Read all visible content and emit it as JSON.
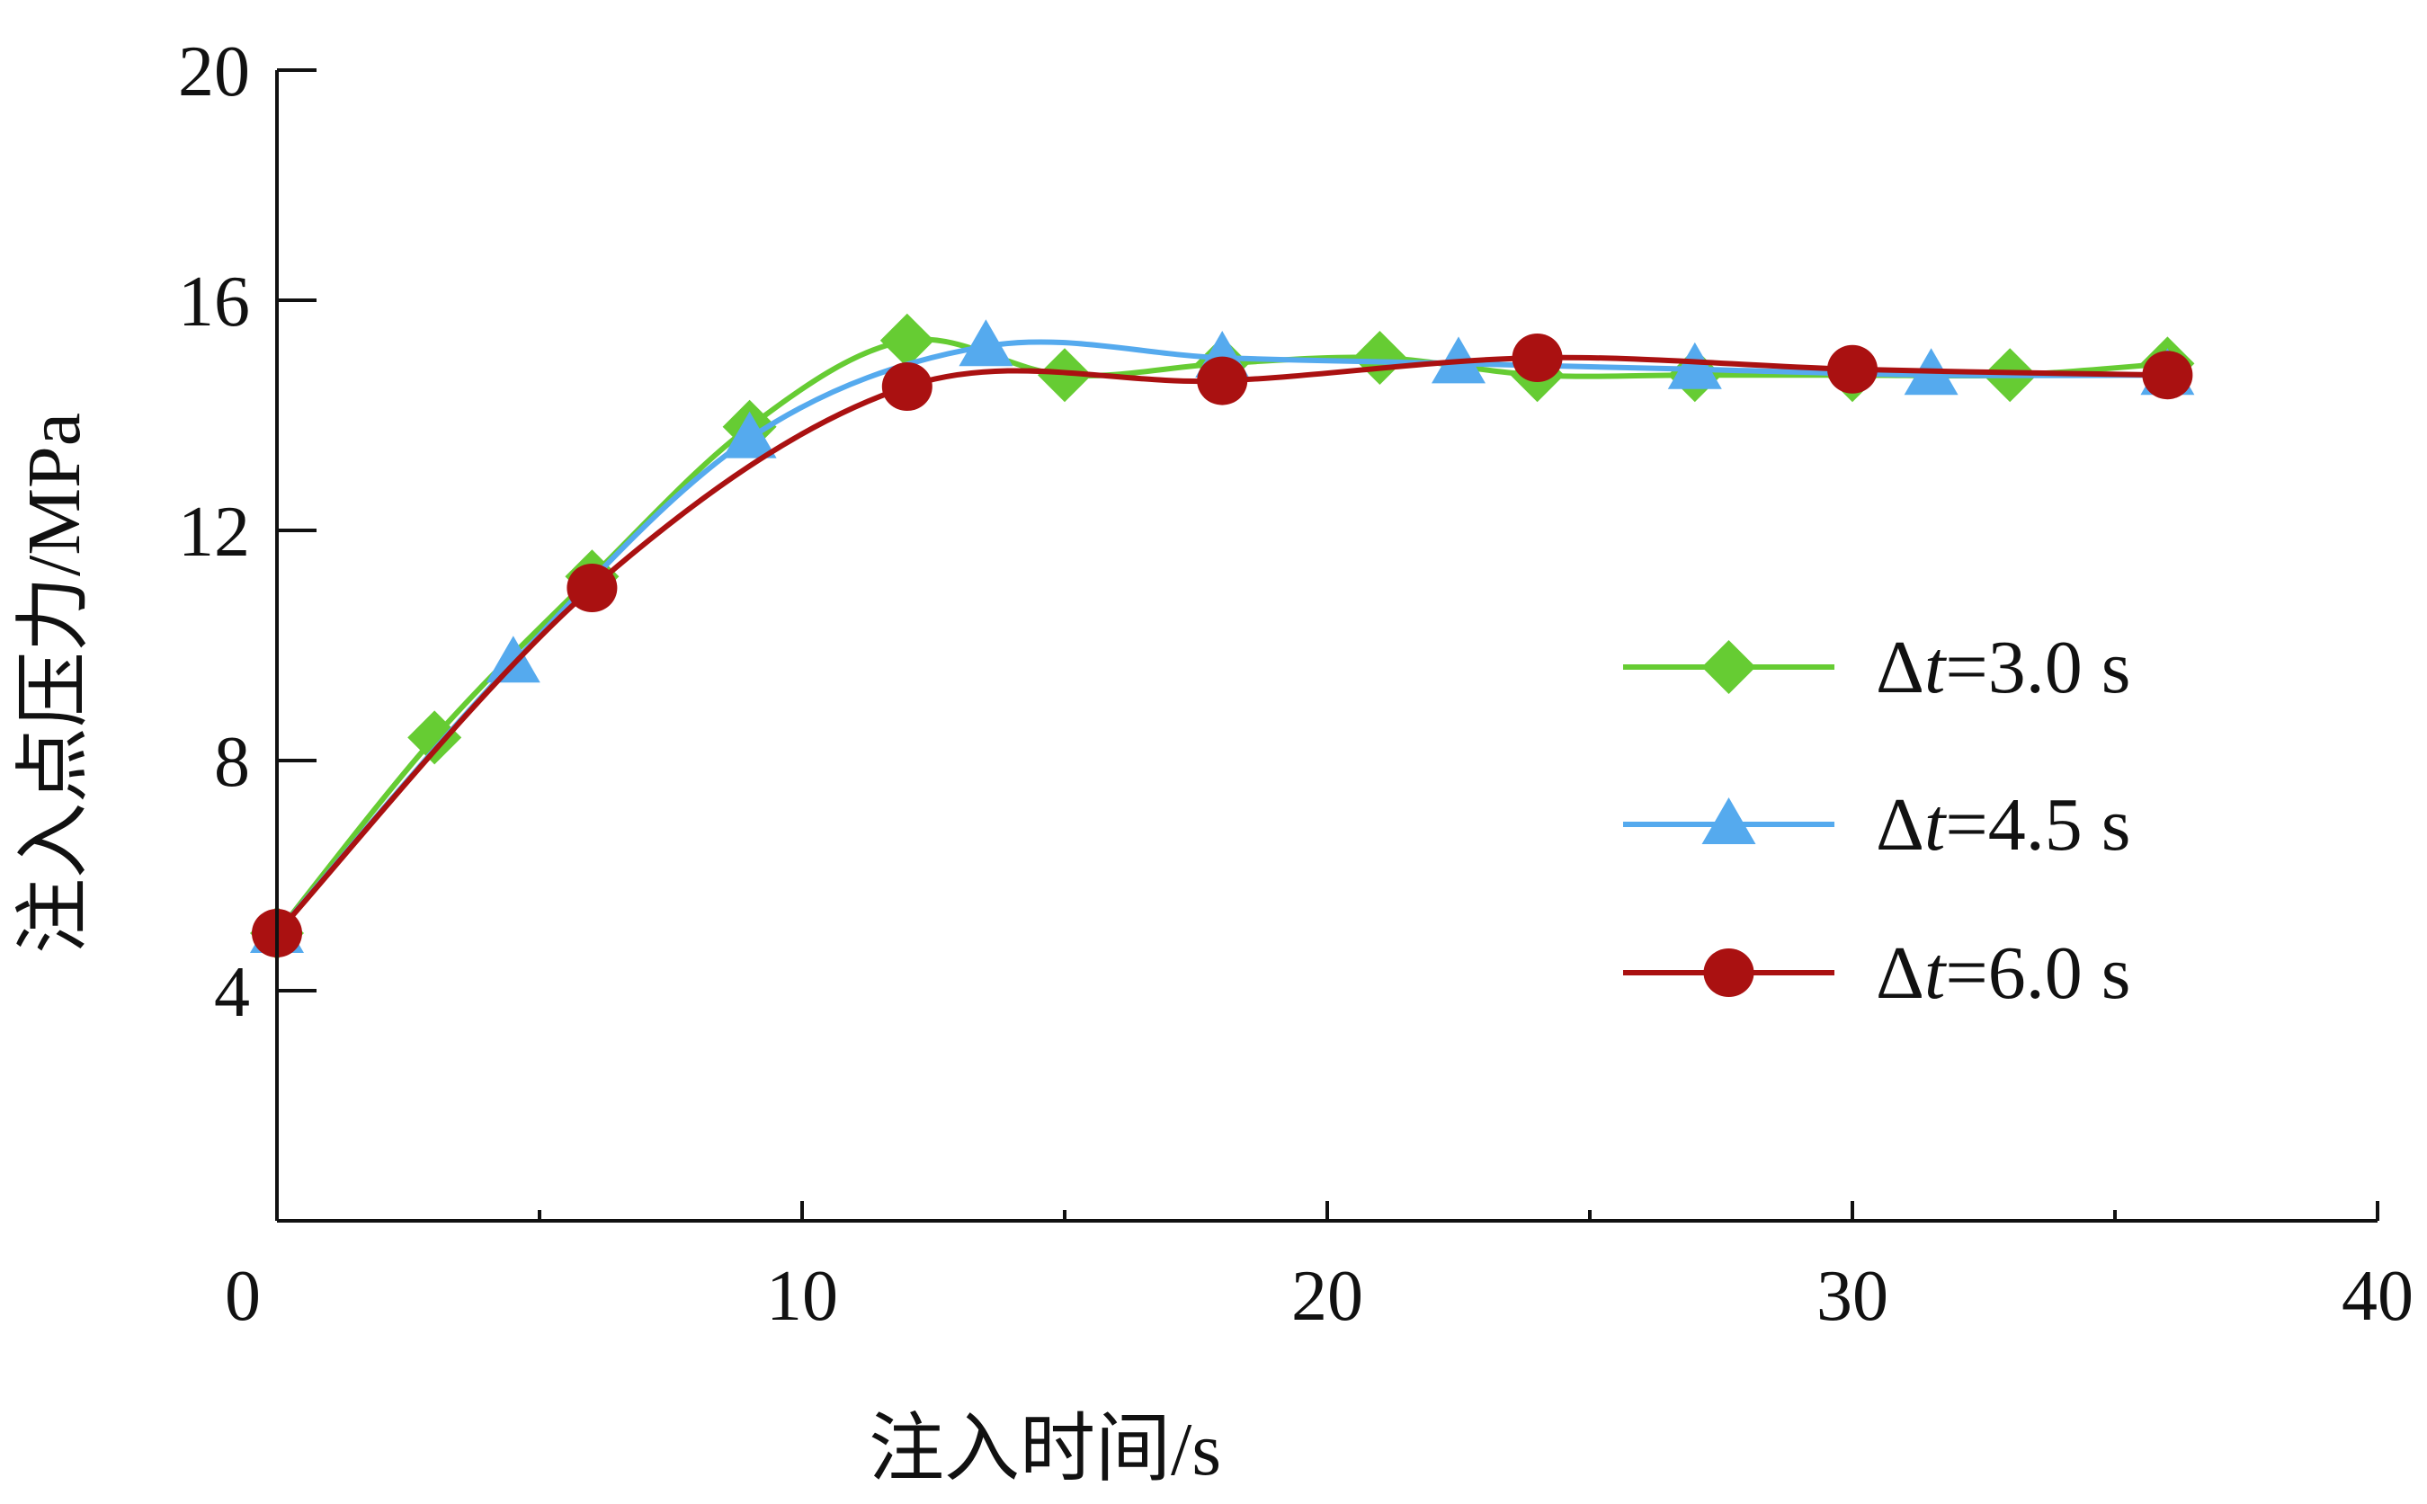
{
  "chart_data": {
    "type": "line",
    "xlabel": "注入时间/s",
    "ylabel": "注入点压力/MPa",
    "xlim": [
      0,
      40
    ],
    "ylim": [
      0,
      20
    ],
    "x_ticks": [
      0,
      10,
      20,
      30,
      40
    ],
    "x_tick_labels": [
      "0",
      "10",
      "20",
      "30",
      "40"
    ],
    "y_ticks": [
      4,
      8,
      12,
      16,
      20
    ],
    "y_tick_labels": [
      "4",
      "8",
      "12",
      "16",
      "20"
    ],
    "x_minor_ticks": [
      5,
      15,
      25,
      35
    ],
    "grid": false,
    "legend_position": "right-middle",
    "series": [
      {
        "name": "Δt=3.0 s",
        "legend_prefix": "Δ",
        "legend_var": "t",
        "legend_suffix": "=3.0 s",
        "color": "#66cc33",
        "marker": "diamond",
        "x": [
          0,
          3,
          6,
          9,
          12,
          15,
          18,
          21,
          24,
          27,
          30,
          33,
          36
        ],
        "y": [
          5.0,
          8.4,
          11.2,
          13.8,
          15.3,
          14.7,
          14.9,
          15.0,
          14.7,
          14.7,
          14.7,
          14.7,
          14.9
        ]
      },
      {
        "name": "Δt=4.5 s",
        "legend_prefix": "Δ",
        "legend_var": "t",
        "legend_suffix": "=4.5 s",
        "color": "#55aaee",
        "marker": "triangle",
        "x": [
          0,
          4.5,
          9,
          13.5,
          18,
          22.5,
          27,
          31.5,
          36
        ],
        "y": [
          5.0,
          9.7,
          13.6,
          15.2,
          15.0,
          14.9,
          14.8,
          14.7,
          14.7
        ]
      },
      {
        "name": "Δt=6.0 s",
        "legend_prefix": "Δ",
        "legend_var": "t",
        "legend_suffix": "=6.0 s",
        "color": "#aa1111",
        "marker": "circle",
        "x": [
          0,
          6,
          12,
          18,
          24,
          30,
          36
        ],
        "y": [
          5.0,
          11.0,
          14.5,
          14.6,
          15.0,
          14.8,
          14.7
        ]
      }
    ]
  }
}
